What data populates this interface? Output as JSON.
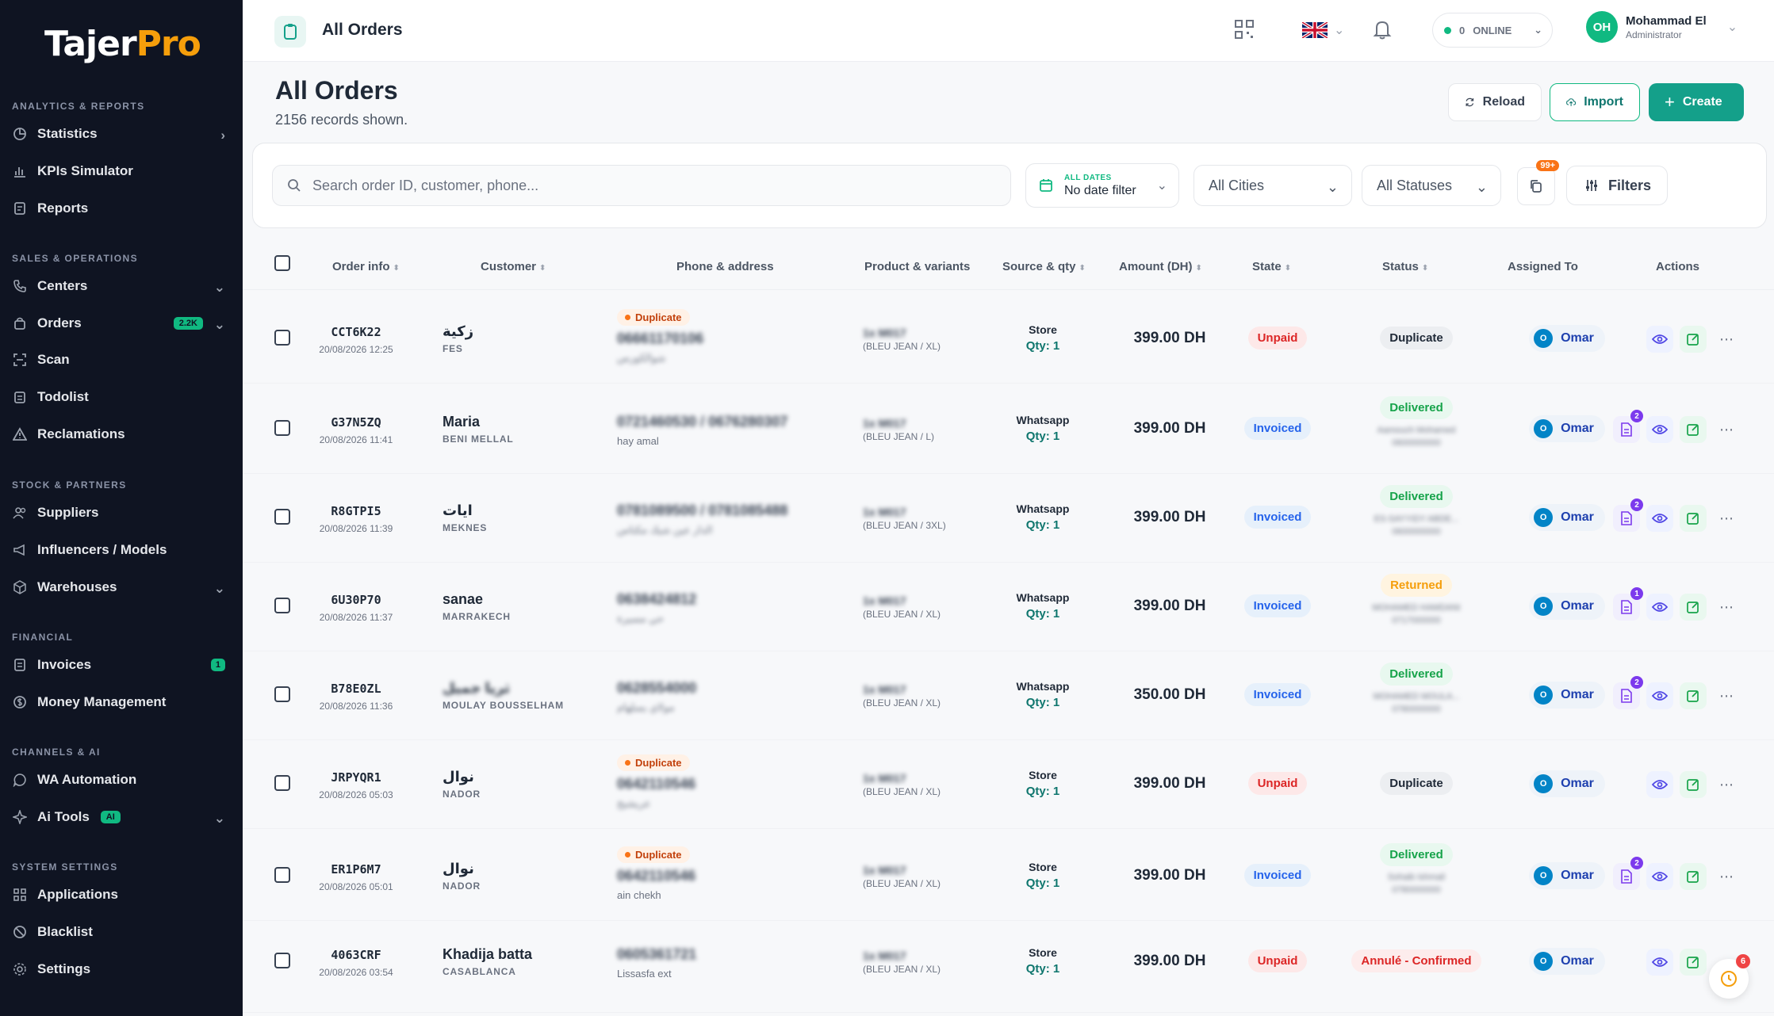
{
  "brand": {
    "name_left": "Tajer",
    "name_right": "Pro",
    "accent": "#14a08a",
    "warm": "#f59e0b"
  },
  "sidebar": {
    "sections": [
      "ANALYTICS & REPORTS",
      "SALES & OPERATIONS",
      "STOCK & PARTNERS",
      "FINANCIAL",
      "CHANNELS & AI",
      "SYSTEM SETTINGS"
    ],
    "items": [
      {
        "label": "Statistics",
        "icon": "pie-chart-icon"
      },
      {
        "label": "KPIs Simulator",
        "icon": "bar-chart-icon"
      },
      {
        "label": "Reports",
        "icon": "report-icon"
      },
      {
        "label": "Centers",
        "icon": "phone-icon"
      },
      {
        "label": "Orders",
        "icon": "bag-icon",
        "badge": "2.2K"
      },
      {
        "label": "Scan",
        "icon": "scan-icon"
      },
      {
        "label": "Todolist",
        "icon": "clipboard-icon"
      },
      {
        "label": "Reclamations",
        "icon": "warning-icon"
      },
      {
        "label": "Suppliers",
        "icon": "users-icon"
      },
      {
        "label": "Influencers / Models",
        "icon": "megaphone-icon"
      },
      {
        "label": "Warehouses",
        "icon": "box-icon"
      },
      {
        "label": "Invoices",
        "icon": "invoice-icon",
        "badge": "1"
      },
      {
        "label": "Money Management",
        "icon": "money-icon"
      },
      {
        "label": "WA Automation",
        "icon": "whatsapp-icon"
      },
      {
        "label": "Ai Tools",
        "icon": "sparkle-icon",
        "badge": "AI"
      },
      {
        "label": "Applications",
        "icon": "grid-icon"
      },
      {
        "label": "Blacklist",
        "icon": "ban-icon"
      },
      {
        "label": "Settings",
        "icon": "settings-icon"
      }
    ]
  },
  "topbar": {
    "title": "All Orders",
    "online_count": "0",
    "online_label": "ONLINE",
    "user_initials": "OH",
    "user_name": "Mohammad El",
    "user_role": "Administrator"
  },
  "page": {
    "title": "All Orders",
    "subtitle": "2156 records shown.",
    "reload": "Reload",
    "import": "Import",
    "create": "Create"
  },
  "filters": {
    "search_placeholder": "Search order ID, customer, phone...",
    "date_label": "ALL DATES",
    "date_value": "No date filter",
    "city": "All Cities",
    "status": "All Statuses",
    "copy_badge": "99+",
    "filters_label": "Filters"
  },
  "table": {
    "headers": [
      "Order info",
      "Customer",
      "Phone & address",
      "Product & variants",
      "Source & qty",
      "Amount (DH)",
      "State",
      "Status",
      "Assigned To",
      "Actions"
    ],
    "rows": [
      {
        "id": "CCT6K22",
        "date": "20/08/2026 12:25",
        "name": "زكية",
        "city": "FES",
        "dup": "Duplicate",
        "phone": "06661170106",
        "addr": "شوالكورس",
        "prod": "1x M017",
        "variant": "(BLEU JEAN / XL)",
        "source": "Store",
        "qty": "Qty: 1",
        "amount": "399.00 DH",
        "state": "Unpaid",
        "status": "Duplicate",
        "assigned": "Omar",
        "doc_badge": ""
      },
      {
        "id": "G37N5ZQ",
        "date": "20/08/2026 11:41",
        "name": "Maria",
        "city": "BENI MELLAL",
        "dup": "",
        "phone": "0721460530 / 0676280307",
        "addr": "hay amal",
        "prod": "1x M017",
        "variant": "(BLEU JEAN / L)",
        "source": "Whatsapp",
        "qty": "Qty: 1",
        "amount": "399.00 DH",
        "state": "Invoiced",
        "status": "Delivered",
        "del1": "Aamouch Mohamed",
        "del2": "0600000000",
        "assigned": "Omar",
        "doc_badge": "2"
      },
      {
        "id": "R8GTPI5",
        "date": "20/08/2026 11:39",
        "name": "ايات",
        "city": "MEKNES",
        "dup": "",
        "phone": "0781089500 / 0781085488",
        "addr": "الدار عين شيك مكناس",
        "prod": "1x M017",
        "variant": "(BLEU JEAN / 3XL)",
        "source": "Whatsapp",
        "qty": "Qty: 1",
        "amount": "399.00 DH",
        "state": "Invoiced",
        "status": "Delivered",
        "del1": "ES-SAYYIDY ABDE...",
        "del2": "0600000000",
        "assigned": "Omar",
        "doc_badge": "2"
      },
      {
        "id": "6U30P70",
        "date": "20/08/2026 11:37",
        "name": "sanae",
        "city": "MARRAKECH",
        "dup": "",
        "phone": "0638424812",
        "addr": "حي مسيرة",
        "prod": "1x M017",
        "variant": "(BLEU JEAN / XL)",
        "source": "Whatsapp",
        "qty": "Qty: 1",
        "amount": "399.00 DH",
        "state": "Invoiced",
        "status": "Returned",
        "del1": "MOHAMED HAMDANI",
        "del2": "0717000000",
        "assigned": "Omar",
        "doc_badge": "1"
      },
      {
        "id": "B78E0ZL",
        "date": "20/08/2026 11:36",
        "name": "ثريا جميل",
        "city": "MOULAY BOUSSELHAM",
        "dup": "",
        "phone": "0628554000",
        "addr": "مولاي بسلهام",
        "prod": "1x M017",
        "variant": "(BLEU JEAN / XL)",
        "source": "Whatsapp",
        "qty": "Qty: 1",
        "amount": "350.00 DH",
        "state": "Invoiced",
        "status": "Delivered",
        "del1": "MOHAMED MOULA...",
        "del2": "0780000000",
        "assigned": "Omar",
        "doc_badge": "2"
      },
      {
        "id": "JRPYQR1",
        "date": "20/08/2026 05:03",
        "name": "نوال",
        "city": "NADOR",
        "dup": "Duplicate",
        "phone": "0642110546",
        "addr": "عريشيخ",
        "prod": "1x M017",
        "variant": "(BLEU JEAN / XL)",
        "source": "Store",
        "qty": "Qty: 1",
        "amount": "399.00 DH",
        "state": "Unpaid",
        "status": "Duplicate",
        "assigned": "Omar",
        "doc_badge": ""
      },
      {
        "id": "ER1P6M7",
        "date": "20/08/2026 05:01",
        "name": "نوال",
        "city": "NADOR",
        "dup": "Duplicate",
        "phone": "0642110546",
        "addr": "ain chekh",
        "prod": "1x M017",
        "variant": "(BLEU JEAN / XL)",
        "source": "Store",
        "qty": "Qty: 1",
        "amount": "399.00 DH",
        "state": "Invoiced",
        "status": "Delivered",
        "del1": "Sohaib Ishmail",
        "del2": "0780000000",
        "assigned": "Omar",
        "doc_badge": "2"
      },
      {
        "id": "4063CRF",
        "date": "20/08/2026 03:54",
        "name": "Khadija batta",
        "city": "CASABLANCA",
        "dup": "",
        "phone": "0605361721",
        "addr": "Lissasfa ext",
        "prod": "1x M017",
        "variant": "(BLEU JEAN / XL)",
        "source": "Store",
        "qty": "Qty: 1",
        "amount": "399.00 DH",
        "state": "Unpaid",
        "status": "Annulé - Confirmed",
        "assigned": "Omar",
        "doc_badge": ""
      }
    ]
  },
  "help": {
    "badge": "6"
  }
}
